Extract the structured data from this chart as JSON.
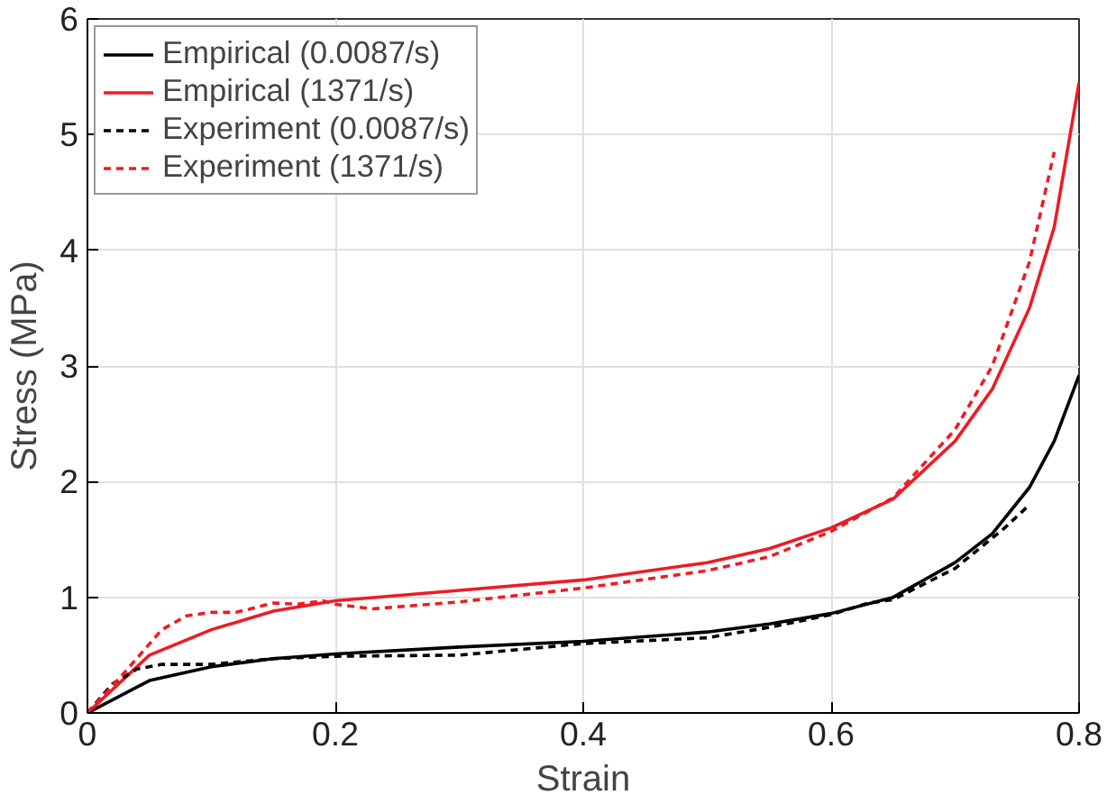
{
  "chart_data": {
    "type": "line",
    "xlabel": "Strain",
    "ylabel": "Stress (MPa)",
    "xlim": [
      0,
      0.8
    ],
    "ylim": [
      0,
      6
    ],
    "xticks": [
      0,
      0.2,
      0.4,
      0.6,
      0.8
    ],
    "yticks": [
      0,
      1,
      2,
      3,
      4,
      5,
      6
    ],
    "grid": true,
    "legend": "top left",
    "series": [
      {
        "name": "Empirical (0.0087/s)",
        "color": "#000000",
        "line_style": "solid",
        "x": [
          0,
          0.05,
          0.1,
          0.15,
          0.2,
          0.3,
          0.4,
          0.5,
          0.55,
          0.6,
          0.65,
          0.7,
          0.73,
          0.76,
          0.78,
          0.8
        ],
        "values": [
          0,
          0.28,
          0.4,
          0.47,
          0.51,
          0.57,
          0.62,
          0.7,
          0.77,
          0.86,
          1.0,
          1.3,
          1.55,
          1.95,
          2.35,
          2.92
        ]
      },
      {
        "name": "Empirical (1371/s)",
        "color": "#ed1c24",
        "line_style": "solid",
        "x": [
          0,
          0.05,
          0.1,
          0.15,
          0.2,
          0.3,
          0.4,
          0.5,
          0.55,
          0.6,
          0.65,
          0.7,
          0.73,
          0.76,
          0.78,
          0.8
        ],
        "values": [
          0,
          0.5,
          0.72,
          0.88,
          0.97,
          1.06,
          1.15,
          1.3,
          1.42,
          1.6,
          1.85,
          2.35,
          2.8,
          3.5,
          4.2,
          5.45
        ]
      },
      {
        "name": "Experiment (0.0087/s)",
        "color": "#000000",
        "line_style": "dashed",
        "x": [
          0,
          0.02,
          0.04,
          0.06,
          0.1,
          0.15,
          0.2,
          0.3,
          0.4,
          0.5,
          0.55,
          0.6,
          0.63,
          0.65,
          0.7,
          0.74,
          0.76
        ],
        "values": [
          0,
          0.25,
          0.38,
          0.42,
          0.42,
          0.47,
          0.49,
          0.5,
          0.6,
          0.65,
          0.74,
          0.85,
          0.95,
          0.98,
          1.25,
          1.6,
          1.8
        ]
      },
      {
        "name": "Experiment (1371/s)",
        "color": "#ed1c24",
        "line_style": "dashed",
        "x": [
          0,
          0.03,
          0.06,
          0.08,
          0.1,
          0.12,
          0.15,
          0.17,
          0.19,
          0.2,
          0.23,
          0.3,
          0.4,
          0.5,
          0.55,
          0.6,
          0.65,
          0.7,
          0.73,
          0.76,
          0.78
        ],
        "values": [
          0,
          0.35,
          0.72,
          0.84,
          0.87,
          0.87,
          0.95,
          0.94,
          0.97,
          0.94,
          0.9,
          0.96,
          1.08,
          1.23,
          1.35,
          1.57,
          1.86,
          2.45,
          3.0,
          3.9,
          4.85
        ]
      }
    ]
  }
}
